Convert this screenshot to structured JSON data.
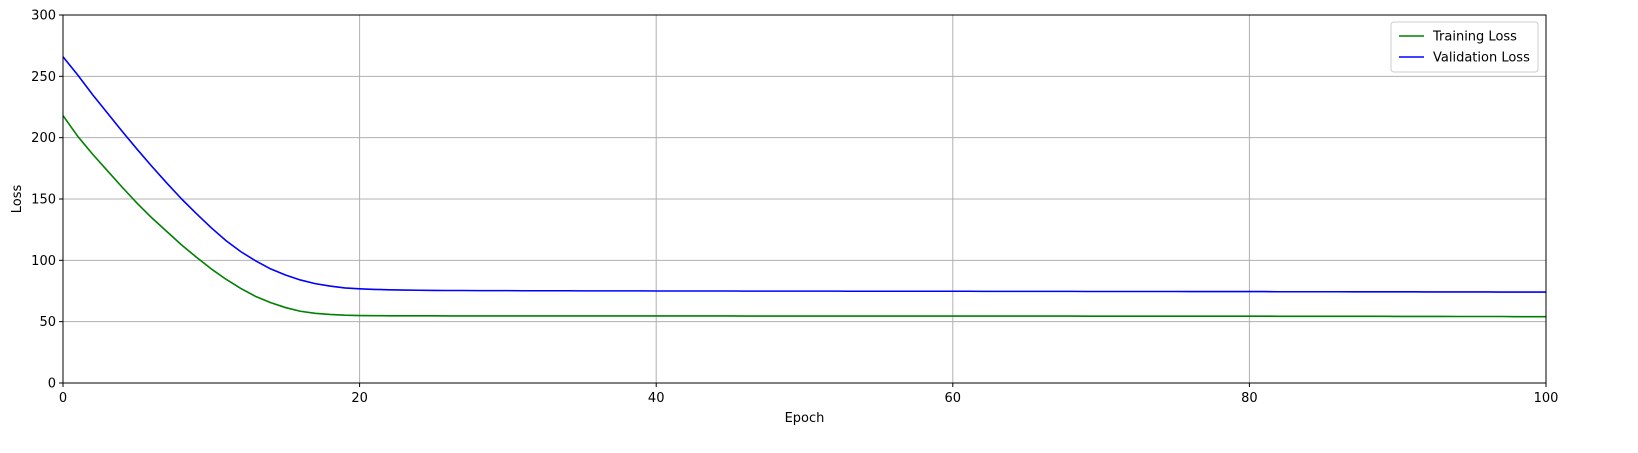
{
  "chart_data": {
    "type": "line",
    "xlabel": "Epoch",
    "ylabel": "Loss",
    "xlim": [
      0,
      100
    ],
    "ylim": [
      0,
      300
    ],
    "xticks": [
      0,
      20,
      40,
      60,
      80,
      100
    ],
    "yticks": [
      0,
      50,
      100,
      150,
      200,
      250,
      300
    ],
    "grid": true,
    "legend_position": "top-right",
    "x": [
      0,
      1,
      2,
      3,
      4,
      5,
      6,
      7,
      8,
      9,
      10,
      11,
      12,
      13,
      14,
      15,
      16,
      17,
      18,
      19,
      20,
      21,
      22,
      23,
      24,
      25,
      26,
      27,
      28,
      29,
      30,
      31,
      32,
      33,
      34,
      35,
      36,
      37,
      38,
      39,
      40,
      41,
      42,
      43,
      44,
      45,
      46,
      47,
      48,
      49,
      50,
      51,
      52,
      53,
      54,
      55,
      56,
      57,
      58,
      59,
      60,
      61,
      62,
      63,
      64,
      65,
      66,
      67,
      68,
      69,
      70,
      71,
      72,
      73,
      74,
      75,
      76,
      77,
      78,
      79,
      80,
      81,
      82,
      83,
      84,
      85,
      86,
      87,
      88,
      89,
      90,
      91,
      92,
      93,
      94,
      95,
      96,
      97,
      98,
      99,
      100
    ],
    "series": [
      {
        "name": "Training Loss",
        "color": "#008000",
        "values": [
          218,
          201,
          186.5,
          173,
          159.5,
          146.5,
          134.5,
          123.5,
          112.5,
          102.5,
          93,
          84.5,
          77,
          70.5,
          65.5,
          61.5,
          58.5,
          56.8,
          55.9,
          55.3,
          55,
          54.9,
          54.8,
          54.8,
          54.8,
          54.8,
          54.7,
          54.7,
          54.7,
          54.7,
          54.7,
          54.7,
          54.7,
          54.7,
          54.7,
          54.7,
          54.7,
          54.7,
          54.7,
          54.7,
          54.7,
          54.7,
          54.7,
          54.7,
          54.7,
          54.7,
          54.6,
          54.6,
          54.6,
          54.6,
          54.6,
          54.6,
          54.6,
          54.6,
          54.6,
          54.6,
          54.6,
          54.6,
          54.6,
          54.6,
          54.6,
          54.6,
          54.6,
          54.6,
          54.6,
          54.6,
          54.6,
          54.6,
          54.6,
          54.5,
          54.5,
          54.5,
          54.5,
          54.5,
          54.5,
          54.5,
          54.5,
          54.5,
          54.5,
          54.5,
          54.5,
          54.5,
          54.4,
          54.4,
          54.4,
          54.4,
          54.4,
          54.4,
          54.4,
          54.4,
          54.3,
          54.3,
          54.3,
          54.3,
          54.2,
          54.2,
          54.2,
          54.2,
          54.1,
          54.1,
          54.1
        ]
      },
      {
        "name": "Validation Loss",
        "color": "#0000ff",
        "values": [
          266,
          251,
          235,
          220,
          205,
          190.5,
          176.5,
          163,
          150,
          138,
          126.5,
          116,
          107,
          99.5,
          93,
          88,
          84,
          81,
          79,
          77.5,
          76.8,
          76.3,
          76,
          75.8,
          75.6,
          75.5,
          75.4,
          75.4,
          75.3,
          75.3,
          75.3,
          75.2,
          75.2,
          75.2,
          75.2,
          75.1,
          75.1,
          75.1,
          75.1,
          75.1,
          75,
          75,
          75,
          75,
          75,
          75,
          74.9,
          74.9,
          74.9,
          74.9,
          74.9,
          74.9,
          74.9,
          74.8,
          74.8,
          74.8,
          74.8,
          74.8,
          74.8,
          74.8,
          74.8,
          74.8,
          74.7,
          74.7,
          74.7,
          74.7,
          74.7,
          74.7,
          74.7,
          74.6,
          74.6,
          74.6,
          74.6,
          74.6,
          74.6,
          74.6,
          74.5,
          74.5,
          74.5,
          74.5,
          74.5,
          74.5,
          74.4,
          74.4,
          74.4,
          74.4,
          74.4,
          74.3,
          74.3,
          74.3,
          74.3,
          74.3,
          74.2,
          74.2,
          74.2,
          74.2,
          74.2,
          74.1,
          74.1,
          74.1,
          74.1
        ]
      }
    ]
  }
}
